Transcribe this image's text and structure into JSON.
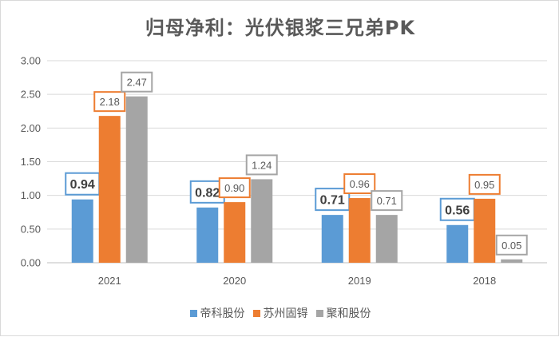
{
  "chart_data": {
    "type": "bar",
    "title": "归母净利：光伏银浆三兄弟PK",
    "categories": [
      "2021",
      "2020",
      "2019",
      "2018"
    ],
    "series": [
      {
        "name": "帝科股份",
        "color": "#5b9bd5",
        "values": [
          0.94,
          0.82,
          0.71,
          0.56
        ],
        "labels": [
          "0.94",
          "0.82",
          "0.71",
          "0.56"
        ]
      },
      {
        "name": "苏州固锝",
        "color": "#ed7d31",
        "values": [
          2.18,
          0.9,
          0.96,
          0.95
        ],
        "labels": [
          "2.18",
          "0.90",
          "0.96",
          "0.95"
        ]
      },
      {
        "name": "聚和股份",
        "color": "#a5a5a5",
        "values": [
          2.47,
          1.24,
          0.71,
          0.05
        ],
        "labels": [
          "2.47",
          "1.24",
          "0.71",
          "0.05"
        ]
      }
    ],
    "yticks": [
      "0.00",
      "0.50",
      "1.00",
      "1.50",
      "2.00",
      "2.50",
      "3.00"
    ],
    "ylim": [
      0,
      3
    ],
    "grid": true,
    "legend_position": "bottom"
  }
}
